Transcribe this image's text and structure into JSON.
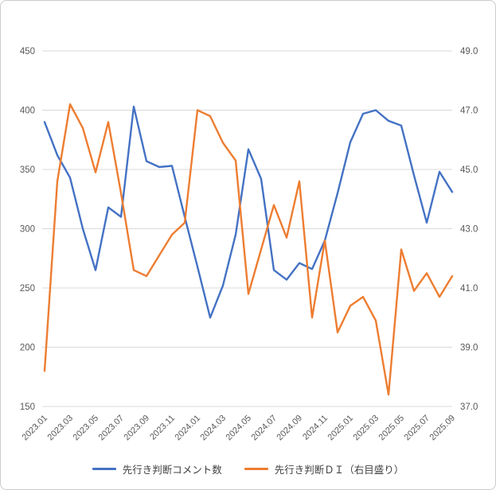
{
  "chart_data": {
    "type": "line",
    "title": "",
    "x": [
      "2023.01",
      "2023.02",
      "2023.03",
      "2023.04",
      "2023.05",
      "2023.06",
      "2023.07",
      "2023.08",
      "2023.09",
      "2023.10",
      "2023.11",
      "2023.12",
      "2024.01",
      "2024.02",
      "2024.03",
      "2024.04",
      "2024.05",
      "2024.06",
      "2024.07",
      "2024.08",
      "2024.09",
      "2024.10",
      "2024.11",
      "2024.12",
      "2025.01",
      "2025.02",
      "2025.03",
      "2025.04",
      "2025.05",
      "2025.06",
      "2025.07",
      "2025.08",
      "2025.09"
    ],
    "x_tick_labels": [
      "2023.01",
      "2023.03",
      "2023.05",
      "2023.07",
      "2023.09",
      "2023.11",
      "2024.01",
      "2024.03",
      "2024.05",
      "2024.07",
      "2024.09",
      "2024.11",
      "2025.01",
      "2025.03",
      "2025.05",
      "2025.07",
      "2025.09"
    ],
    "series": [
      {
        "name": "先行き判断コメント数",
        "axis": "left",
        "color": "#4472C4",
        "values": [
          390,
          362,
          343,
          300,
          265,
          318,
          310,
          403,
          357,
          352,
          353,
          310,
          268,
          225,
          252,
          295,
          367,
          342,
          265,
          257,
          271,
          266,
          290,
          330,
          373,
          397,
          400,
          391,
          387,
          345,
          305,
          348,
          331
        ]
      },
      {
        "name": "先行き判断ＤＩ（右目盛り）",
        "axis": "right",
        "color": "#ED7D31",
        "values": [
          38.2,
          44.6,
          47.2,
          46.4,
          44.9,
          46.6,
          44.2,
          41.6,
          41.4,
          42.1,
          42.8,
          43.2,
          47.0,
          46.8,
          45.9,
          45.3,
          40.8,
          42.3,
          43.8,
          42.7,
          44.6,
          40.0,
          42.6,
          39.5,
          40.4,
          40.7,
          39.9,
          37.4,
          42.3,
          40.9,
          41.5,
          40.7,
          41.4
        ]
      }
    ],
    "left_axis": {
      "range": [
        150,
        450
      ],
      "ticks": [
        150,
        200,
        250,
        300,
        350,
        400,
        450
      ],
      "tick_labels": [
        "150",
        "200",
        "250",
        "300",
        "350",
        "400",
        "450"
      ]
    },
    "right_axis": {
      "range": [
        37,
        49
      ],
      "ticks": [
        37,
        39,
        41,
        43,
        45,
        47,
        49
      ],
      "tick_labels": [
        "37.0",
        "39.0",
        "41.0",
        "43.0",
        "45.0",
        "47.0",
        "49.0"
      ]
    },
    "grid": true,
    "grid_color": "#d9d9d9",
    "tick_text_color": "#595959",
    "legend_position": "bottom"
  }
}
